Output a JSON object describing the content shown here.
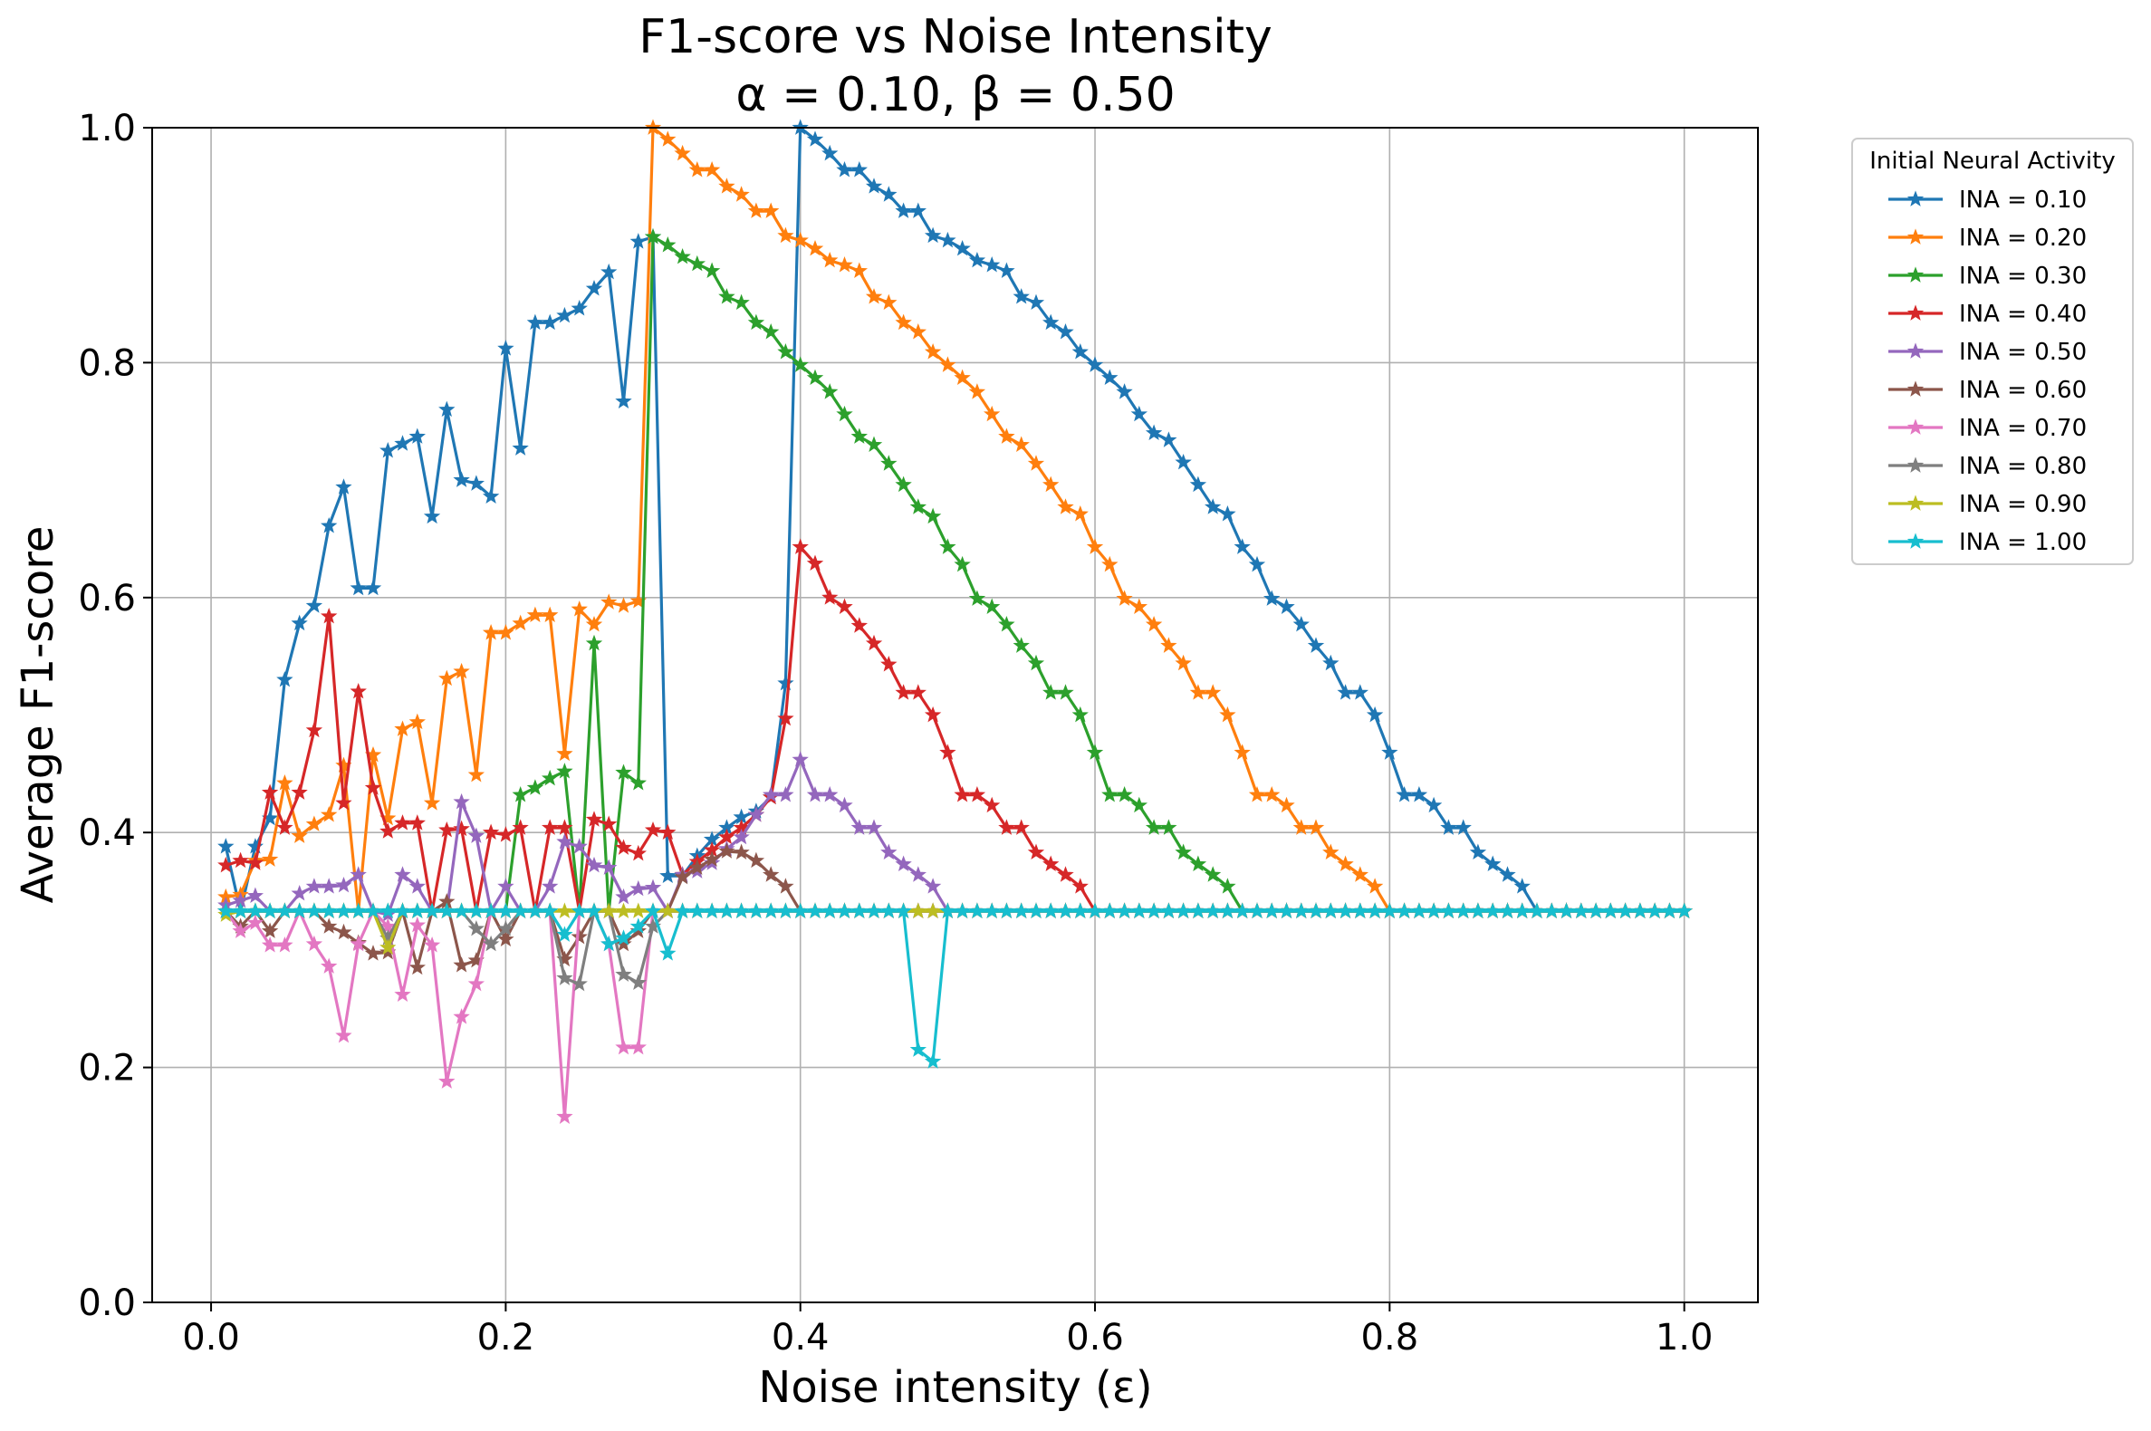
{
  "chart_data": {
    "type": "line",
    "title": "F1-score vs Noise Intensity",
    "subtitle": "α = 0.10, β = 0.50",
    "xlabel": "Noise intensity (ε)",
    "ylabel": "Average F1-score",
    "xlim": [
      -0.04,
      1.05
    ],
    "ylim": [
      0.0,
      1.0
    ],
    "xticks": [
      "0.0",
      "0.2",
      "0.4",
      "0.6",
      "0.8",
      "1.0"
    ],
    "yticks": [
      "0.0",
      "0.2",
      "0.4",
      "0.6",
      "0.8",
      "1.0"
    ],
    "grid": true,
    "marker": "star",
    "legend": {
      "title": "Initial Neural Activity",
      "placement": "outside-right"
    },
    "x": [
      0.01,
      0.02,
      0.03,
      0.04,
      0.05,
      0.06,
      0.07,
      0.08,
      0.09,
      0.1,
      0.11,
      0.12,
      0.13,
      0.14,
      0.15,
      0.16,
      0.17,
      0.18,
      0.19,
      0.2,
      0.21,
      0.22,
      0.23,
      0.24,
      0.25,
      0.26,
      0.27,
      0.28,
      0.29,
      0.3,
      0.31,
      0.32,
      0.33,
      0.34,
      0.35,
      0.36,
      0.37,
      0.38,
      0.39,
      0.4,
      0.41,
      0.42,
      0.43,
      0.44,
      0.45,
      0.46,
      0.47,
      0.48,
      0.49,
      0.5,
      0.51,
      0.52,
      0.53,
      0.54,
      0.55,
      0.56,
      0.57,
      0.58,
      0.59,
      0.6,
      0.61,
      0.62,
      0.63,
      0.64,
      0.65,
      0.66,
      0.67,
      0.68,
      0.69,
      0.7,
      0.71,
      0.72,
      0.73,
      0.74,
      0.75,
      0.76,
      0.77,
      0.78,
      0.79,
      0.8,
      0.81,
      0.82,
      0.83,
      0.84,
      0.85,
      0.86,
      0.87,
      0.88,
      0.89,
      0.9,
      0.91,
      0.92,
      0.93,
      0.94,
      0.95,
      0.96,
      0.97,
      0.98,
      0.99,
      1.0
    ],
    "series": [
      {
        "name": "INA = 0.10",
        "color": "#1f77b4",
        "values": [
          0.388,
          0.333,
          0.388,
          0.412,
          0.53,
          0.578,
          0.593,
          0.661,
          0.694,
          0.608,
          0.608,
          0.725,
          0.731,
          0.737,
          0.669,
          0.76,
          0.7,
          0.697,
          0.686,
          0.812,
          0.727,
          0.834,
          0.834,
          0.84,
          0.846,
          0.863,
          0.877,
          0.767,
          0.903,
          0.907,
          0.363,
          0.363,
          0.38,
          0.394,
          0.404,
          0.413,
          0.418,
          0.43,
          0.527,
          1.0,
          0.99,
          0.978,
          0.964,
          0.964,
          0.95,
          0.943,
          0.929,
          0.929,
          0.908,
          0.904,
          0.897,
          0.887,
          0.883,
          0.878,
          0.856,
          0.851,
          0.834,
          0.826,
          0.809,
          0.798,
          0.787,
          0.775,
          0.756,
          0.74,
          0.734,
          0.715,
          0.696,
          0.677,
          0.671,
          0.643,
          0.628,
          0.599,
          0.592,
          0.577,
          0.559,
          0.544,
          0.519,
          0.519,
          0.5,
          0.468,
          0.432,
          0.432,
          0.423,
          0.404,
          0.404,
          0.383,
          0.373,
          0.364,
          0.354,
          0.333,
          0.333,
          0.333,
          0.333,
          0.333,
          0.333,
          0.333,
          0.333,
          0.333,
          0.333,
          0.333
        ]
      },
      {
        "name": "INA = 0.20",
        "color": "#ff7f0e",
        "values": [
          0.345,
          0.347,
          0.376,
          0.377,
          0.442,
          0.397,
          0.407,
          0.415,
          0.457,
          0.333,
          0.466,
          0.412,
          0.488,
          0.494,
          0.425,
          0.531,
          0.537,
          0.449,
          0.57,
          0.57,
          0.578,
          0.585,
          0.585,
          0.467,
          0.59,
          0.577,
          0.596,
          0.593,
          0.597,
          1.0,
          0.99,
          0.978,
          0.964,
          0.964,
          0.95,
          0.943,
          0.929,
          0.929,
          0.908,
          0.904,
          0.897,
          0.887,
          0.883,
          0.878,
          0.856,
          0.851,
          0.834,
          0.826,
          0.809,
          0.798,
          0.787,
          0.775,
          0.756,
          0.737,
          0.73,
          0.714,
          0.696,
          0.677,
          0.671,
          0.643,
          0.628,
          0.599,
          0.592,
          0.577,
          0.559,
          0.544,
          0.519,
          0.519,
          0.5,
          0.468,
          0.432,
          0.432,
          0.423,
          0.404,
          0.404,
          0.383,
          0.373,
          0.364,
          0.354,
          0.333,
          0.333,
          0.333,
          0.333,
          0.333,
          0.333,
          0.333,
          0.333,
          0.333,
          0.333,
          0.333,
          0.333,
          0.333,
          0.333,
          0.333,
          0.333,
          0.333,
          0.333,
          0.333,
          0.333,
          0.333
        ]
      },
      {
        "name": "INA = 0.30",
        "color": "#2ca02c",
        "values": [
          0.333,
          0.333,
          0.333,
          0.333,
          0.333,
          0.333,
          0.333,
          0.333,
          0.333,
          0.333,
          0.333,
          0.333,
          0.333,
          0.333,
          0.333,
          0.333,
          0.333,
          0.333,
          0.333,
          0.333,
          0.432,
          0.438,
          0.446,
          0.452,
          0.333,
          0.561,
          0.333,
          0.451,
          0.442,
          0.907,
          0.9,
          0.89,
          0.884,
          0.878,
          0.856,
          0.851,
          0.834,
          0.826,
          0.809,
          0.798,
          0.787,
          0.775,
          0.756,
          0.737,
          0.73,
          0.714,
          0.696,
          0.677,
          0.669,
          0.643,
          0.628,
          0.599,
          0.592,
          0.577,
          0.559,
          0.544,
          0.519,
          0.519,
          0.5,
          0.468,
          0.432,
          0.432,
          0.423,
          0.404,
          0.404,
          0.383,
          0.373,
          0.364,
          0.354,
          0.333,
          0.333,
          0.333,
          0.333,
          0.333,
          0.333,
          0.333,
          0.333,
          0.333,
          0.333,
          0.333,
          0.333,
          0.333,
          0.333,
          0.333,
          0.333,
          0.333,
          0.333,
          0.333,
          0.333,
          0.333,
          0.333,
          0.333,
          0.333,
          0.333,
          0.333,
          0.333,
          0.333,
          0.333,
          0.333,
          0.333
        ]
      },
      {
        "name": "INA = 0.40",
        "color": "#d62728",
        "values": [
          0.372,
          0.376,
          0.374,
          0.434,
          0.404,
          0.434,
          0.487,
          0.584,
          0.425,
          0.52,
          0.438,
          0.401,
          0.408,
          0.408,
          0.333,
          0.402,
          0.403,
          0.333,
          0.4,
          0.398,
          0.404,
          0.333,
          0.404,
          0.404,
          0.333,
          0.411,
          0.407,
          0.387,
          0.382,
          0.402,
          0.4,
          0.364,
          0.375,
          0.385,
          0.396,
          0.404,
          0.415,
          0.43,
          0.497,
          0.643,
          0.629,
          0.6,
          0.592,
          0.576,
          0.561,
          0.543,
          0.519,
          0.519,
          0.5,
          0.468,
          0.432,
          0.432,
          0.423,
          0.404,
          0.404,
          0.383,
          0.373,
          0.364,
          0.354,
          0.333,
          0.333,
          0.333,
          0.333,
          0.333,
          0.333,
          0.333,
          0.333,
          0.333,
          0.333,
          0.333,
          0.333,
          0.333,
          0.333,
          0.333,
          0.333,
          0.333,
          0.333,
          0.333,
          0.333,
          0.333,
          0.333,
          0.333,
          0.333,
          0.333,
          0.333,
          0.333,
          0.333,
          0.333,
          0.333,
          0.333,
          0.333,
          0.333,
          0.333,
          0.333,
          0.333,
          0.333,
          0.333,
          0.333,
          0.333,
          0.333
        ]
      },
      {
        "name": "INA = 0.50",
        "color": "#9467bd",
        "values": [
          0.338,
          0.342,
          0.346,
          0.333,
          0.333,
          0.348,
          0.354,
          0.354,
          0.355,
          0.364,
          0.333,
          0.33,
          0.364,
          0.354,
          0.333,
          0.333,
          0.426,
          0.397,
          0.333,
          0.354,
          0.333,
          0.333,
          0.354,
          0.392,
          0.388,
          0.372,
          0.37,
          0.345,
          0.352,
          0.353,
          0.333,
          0.364,
          0.367,
          0.374,
          0.386,
          0.396,
          0.415,
          0.432,
          0.432,
          0.462,
          0.432,
          0.432,
          0.423,
          0.404,
          0.404,
          0.383,
          0.373,
          0.364,
          0.354,
          0.333,
          0.333,
          0.333,
          0.333,
          0.333,
          0.333,
          0.333,
          0.333,
          0.333,
          0.333,
          0.333,
          0.333,
          0.333,
          0.333,
          0.333,
          0.333,
          0.333,
          0.333,
          0.333,
          0.333,
          0.333,
          0.333,
          0.333,
          0.333,
          0.333,
          0.333,
          0.333,
          0.333,
          0.333,
          0.333,
          0.333,
          0.333,
          0.333,
          0.333,
          0.333,
          0.333,
          0.333,
          0.333,
          0.333,
          0.333,
          0.333,
          0.333,
          0.333,
          0.333,
          0.333,
          0.333,
          0.333,
          0.333,
          0.333,
          0.333,
          0.333
        ]
      },
      {
        "name": "INA = 0.60",
        "color": "#8c564b",
        "values": [
          0.333,
          0.32,
          0.333,
          0.316,
          0.333,
          0.333,
          0.333,
          0.32,
          0.315,
          0.306,
          0.297,
          0.298,
          0.333,
          0.285,
          0.333,
          0.341,
          0.287,
          0.291,
          0.333,
          0.309,
          0.333,
          0.333,
          0.333,
          0.292,
          0.311,
          0.333,
          0.333,
          0.305,
          0.316,
          0.333,
          0.333,
          0.362,
          0.37,
          0.377,
          0.384,
          0.383,
          0.376,
          0.364,
          0.354,
          0.333,
          0.333,
          0.333,
          0.333,
          0.333,
          0.333,
          0.333,
          0.333,
          0.333,
          0.333,
          0.333,
          0.333,
          0.333,
          0.333,
          0.333,
          0.333,
          0.333,
          0.333,
          0.333,
          0.333,
          0.333,
          0.333,
          0.333,
          0.333,
          0.333,
          0.333,
          0.333,
          0.333,
          0.333,
          0.333,
          0.333,
          0.333,
          0.333,
          0.333,
          0.333,
          0.333,
          0.333,
          0.333,
          0.333,
          0.333,
          0.333,
          0.333,
          0.333,
          0.333,
          0.333,
          0.333,
          0.333,
          0.333,
          0.333,
          0.333,
          0.333,
          0.333,
          0.333,
          0.333,
          0.333,
          0.333,
          0.333,
          0.333,
          0.333,
          0.333,
          0.333
        ]
      },
      {
        "name": "INA = 0.70",
        "color": "#e377c2",
        "values": [
          0.333,
          0.316,
          0.323,
          0.304,
          0.304,
          0.333,
          0.305,
          0.286,
          0.227,
          0.305,
          0.333,
          0.32,
          0.262,
          0.321,
          0.304,
          0.188,
          0.243,
          0.271,
          0.333,
          0.333,
          0.333,
          0.333,
          0.333,
          0.158,
          0.333,
          0.333,
          0.305,
          0.217,
          0.217,
          0.333,
          0.333,
          0.333,
          0.333,
          0.333,
          0.333,
          0.333,
          0.333,
          0.333,
          0.333,
          0.333,
          0.333,
          0.333,
          0.333,
          0.333,
          0.333,
          0.333,
          0.333,
          0.333,
          0.333,
          0.333,
          0.333,
          0.333,
          0.333,
          0.333,
          0.333,
          0.333,
          0.333,
          0.333,
          0.333,
          0.333,
          0.333,
          0.333,
          0.333,
          0.333,
          0.333,
          0.333,
          0.333,
          0.333,
          0.333,
          0.333,
          0.333,
          0.333,
          0.333,
          0.333,
          0.333,
          0.333,
          0.333,
          0.333,
          0.333,
          0.333,
          0.333,
          0.333,
          0.333,
          0.333,
          0.333,
          0.333,
          0.333,
          0.333,
          0.333,
          0.333,
          0.333,
          0.333,
          0.333,
          0.333,
          0.333,
          0.333,
          0.333,
          0.333,
          0.333,
          0.333
        ]
      },
      {
        "name": "INA = 0.80",
        "color": "#7f7f7f",
        "values": [
          0.333,
          0.333,
          0.333,
          0.333,
          0.333,
          0.333,
          0.333,
          0.333,
          0.333,
          0.333,
          0.333,
          0.31,
          0.333,
          0.333,
          0.333,
          0.333,
          0.333,
          0.318,
          0.305,
          0.318,
          0.333,
          0.333,
          0.333,
          0.276,
          0.271,
          0.333,
          0.333,
          0.279,
          0.272,
          0.32,
          0.333,
          0.333,
          0.333,
          0.333,
          0.333,
          0.333,
          0.333,
          0.333,
          0.333,
          0.333,
          0.333,
          0.333,
          0.333,
          0.333,
          0.333,
          0.333,
          0.333,
          0.333,
          0.333,
          0.333,
          0.333,
          0.333,
          0.333,
          0.333,
          0.333,
          0.333,
          0.333,
          0.333,
          0.333,
          0.333,
          0.333,
          0.333,
          0.333,
          0.333,
          0.333,
          0.333,
          0.333,
          0.333,
          0.333,
          0.333,
          0.333,
          0.333,
          0.333,
          0.333,
          0.333,
          0.333,
          0.333,
          0.333,
          0.333,
          0.333,
          0.333,
          0.333,
          0.333,
          0.333,
          0.333,
          0.333,
          0.333,
          0.333,
          0.333,
          0.333,
          0.333,
          0.333,
          0.333,
          0.333,
          0.333,
          0.333,
          0.333,
          0.333,
          0.333,
          0.333
        ]
      },
      {
        "name": "INA = 0.90",
        "color": "#bcbd22",
        "values": [
          0.33,
          0.333,
          0.333,
          0.333,
          0.333,
          0.333,
          0.333,
          0.333,
          0.333,
          0.333,
          0.333,
          0.302,
          0.333,
          0.333,
          0.333,
          0.333,
          0.333,
          0.333,
          0.333,
          0.333,
          0.333,
          0.333,
          0.333,
          0.333,
          0.333,
          0.333,
          0.333,
          0.333,
          0.333,
          0.333,
          0.333,
          0.333,
          0.333,
          0.333,
          0.333,
          0.333,
          0.333,
          0.333,
          0.333,
          0.333,
          0.333,
          0.333,
          0.333,
          0.333,
          0.333,
          0.333,
          0.333,
          0.333,
          0.333,
          0.333,
          0.333,
          0.333,
          0.333,
          0.333,
          0.333,
          0.333,
          0.333,
          0.333,
          0.333,
          0.333,
          0.333,
          0.333,
          0.333,
          0.333,
          0.333,
          0.333,
          0.333,
          0.333,
          0.333,
          0.333,
          0.333,
          0.333,
          0.333,
          0.333,
          0.333,
          0.333,
          0.333,
          0.333,
          0.333,
          0.333,
          0.333,
          0.333,
          0.333,
          0.333,
          0.333,
          0.333,
          0.333,
          0.333,
          0.333,
          0.333,
          0.333,
          0.333,
          0.333,
          0.333,
          0.333,
          0.333,
          0.333,
          0.333,
          0.333,
          0.333
        ]
      },
      {
        "name": "INA = 1.00",
        "color": "#17becf",
        "values": [
          0.333,
          0.333,
          0.333,
          0.333,
          0.333,
          0.333,
          0.333,
          0.333,
          0.333,
          0.333,
          0.333,
          0.333,
          0.333,
          0.333,
          0.333,
          0.333,
          0.333,
          0.333,
          0.333,
          0.333,
          0.333,
          0.333,
          0.333,
          0.313,
          0.333,
          0.333,
          0.305,
          0.31,
          0.32,
          0.333,
          0.297,
          0.333,
          0.333,
          0.333,
          0.333,
          0.333,
          0.333,
          0.333,
          0.333,
          0.333,
          0.333,
          0.333,
          0.333,
          0.333,
          0.333,
          0.333,
          0.333,
          0.215,
          0.205,
          0.333,
          0.333,
          0.333,
          0.333,
          0.333,
          0.333,
          0.333,
          0.333,
          0.333,
          0.333,
          0.333,
          0.333,
          0.333,
          0.333,
          0.333,
          0.333,
          0.333,
          0.333,
          0.333,
          0.333,
          0.333,
          0.333,
          0.333,
          0.333,
          0.333,
          0.333,
          0.333,
          0.333,
          0.333,
          0.333,
          0.333,
          0.333,
          0.333,
          0.333,
          0.333,
          0.333,
          0.333,
          0.333,
          0.333,
          0.333,
          0.333,
          0.333,
          0.333,
          0.333,
          0.333,
          0.333,
          0.333,
          0.333,
          0.333,
          0.333,
          0.333
        ]
      }
    ]
  }
}
